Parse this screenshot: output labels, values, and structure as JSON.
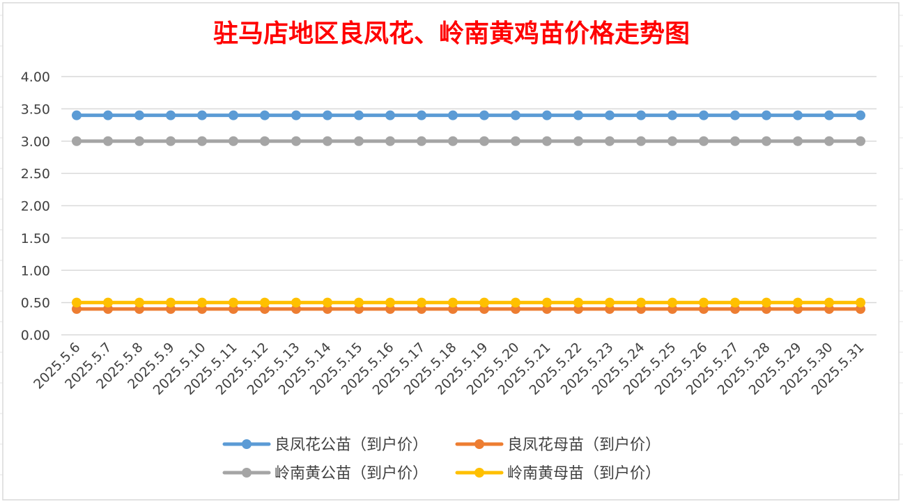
{
  "chart_data": {
    "type": "line",
    "title": "驻马店地区良凤花、岭南黄鸡苗价格走势图",
    "title_color": "#ff0000",
    "xlabel": "",
    "ylabel": "",
    "ylim": [
      0,
      4
    ],
    "ytick_step": 0.5,
    "ytick_labels": [
      "0.00",
      "0.50",
      "1.00",
      "1.50",
      "2.00",
      "2.50",
      "3.00",
      "3.50",
      "4.00"
    ],
    "grid": true,
    "legend_position": "bottom",
    "categories": [
      "2025.5.6",
      "2025.5.7",
      "2025.5.8",
      "2025.5.9",
      "2025.5.10",
      "2025.5.11",
      "2025.5.12",
      "2025.5.13",
      "2025.5.14",
      "2025.5.15",
      "2025.5.16",
      "2025.5.17",
      "2025.5.18",
      "2025.5.19",
      "2025.5.20",
      "2025.5.21",
      "2025.5.22",
      "2025.5.23",
      "2025.5.24",
      "2025.5.25",
      "2025.5.26",
      "2025.5.27",
      "2025.5.28",
      "2025.5.29",
      "2025.5.30",
      "2025.5.31"
    ],
    "series": [
      {
        "name": "良凤花公苗（到户价）",
        "color": "#5b9bd5",
        "values": [
          3.4,
          3.4,
          3.4,
          3.4,
          3.4,
          3.4,
          3.4,
          3.4,
          3.4,
          3.4,
          3.4,
          3.4,
          3.4,
          3.4,
          3.4,
          3.4,
          3.4,
          3.4,
          3.4,
          3.4,
          3.4,
          3.4,
          3.4,
          3.4,
          3.4,
          3.4
        ]
      },
      {
        "name": "良凤花母苗（到户价）",
        "color": "#ed7d31",
        "values": [
          0.4,
          0.4,
          0.4,
          0.4,
          0.4,
          0.4,
          0.4,
          0.4,
          0.4,
          0.4,
          0.4,
          0.4,
          0.4,
          0.4,
          0.4,
          0.4,
          0.4,
          0.4,
          0.4,
          0.4,
          0.4,
          0.4,
          0.4,
          0.4,
          0.4,
          0.4
        ]
      },
      {
        "name": "岭南黄公苗（到户价）",
        "color": "#a5a5a5",
        "values": [
          3.0,
          3.0,
          3.0,
          3.0,
          3.0,
          3.0,
          3.0,
          3.0,
          3.0,
          3.0,
          3.0,
          3.0,
          3.0,
          3.0,
          3.0,
          3.0,
          3.0,
          3.0,
          3.0,
          3.0,
          3.0,
          3.0,
          3.0,
          3.0,
          3.0,
          3.0
        ]
      },
      {
        "name": "岭南黄母苗（到户价）",
        "color": "#ffc000",
        "values": [
          0.5,
          0.5,
          0.5,
          0.5,
          0.5,
          0.5,
          0.5,
          0.5,
          0.5,
          0.5,
          0.5,
          0.5,
          0.5,
          0.5,
          0.5,
          0.5,
          0.5,
          0.5,
          0.5,
          0.5,
          0.5,
          0.5,
          0.5,
          0.5,
          0.5,
          0.5
        ]
      }
    ]
  }
}
